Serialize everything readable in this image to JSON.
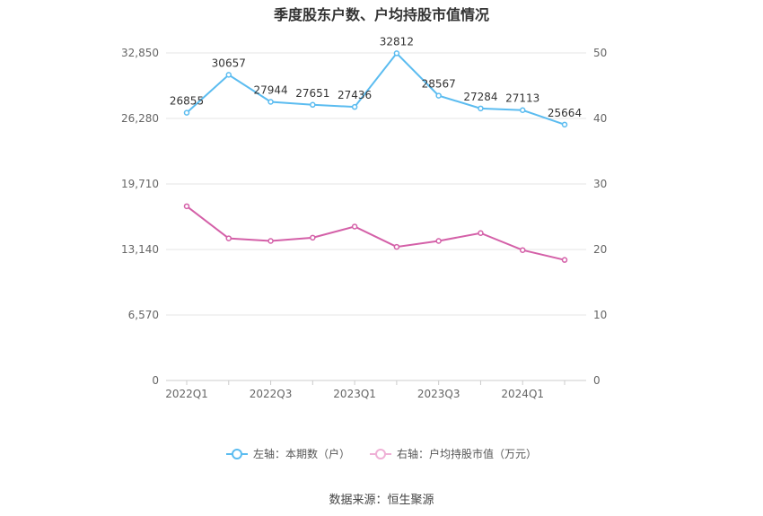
{
  "title": "季度股东户数、户均持股市值情况",
  "source_note": "数据来源：恒生聚源",
  "colors": {
    "left_series": "#5bbcf0",
    "right_series": "#d460a8",
    "grid": "#e4e4e4",
    "axis": "#cccccc"
  },
  "chart_data": {
    "type": "line",
    "title": "季度股东户数、户均持股市值情况",
    "x": [
      "2022Q1",
      "2022Q2",
      "2022Q3",
      "2022Q4",
      "2023Q1",
      "2023Q2",
      "2023Q3",
      "2023Q4",
      "2024Q1",
      "2024Q2"
    ],
    "x_tick_labels": [
      "2022Q1",
      "",
      "2022Q3",
      "",
      "2023Q1",
      "",
      "2023Q3",
      "",
      "2024Q1",
      ""
    ],
    "left_axis": {
      "ylim": [
        0,
        32850
      ],
      "ticks": [
        "0",
        "6,570",
        "13,140",
        "19,710",
        "26,280",
        "32,850"
      ]
    },
    "right_axis": {
      "ylim": [
        0,
        50
      ],
      "ticks": [
        "0",
        "10",
        "20",
        "30",
        "40",
        "50"
      ]
    },
    "grid": true,
    "legend_position": "bottom",
    "series": [
      {
        "name": "左轴：本期数（户）",
        "axis": "left",
        "values": [
          26855,
          30657,
          27944,
          27651,
          27436,
          32812,
          28567,
          27284,
          27113,
          25664
        ],
        "labels": [
          "26855",
          "30657",
          "27944",
          "27651",
          "27436",
          "32812",
          "28567",
          "27284",
          "27113",
          "25664"
        ]
      },
      {
        "name": "右轴：户均持股市值（万元）",
        "axis": "right",
        "values": [
          26.6,
          21.7,
          21.3,
          21.8,
          23.5,
          20.4,
          21.3,
          22.5,
          19.9,
          18.4
        ]
      }
    ]
  }
}
